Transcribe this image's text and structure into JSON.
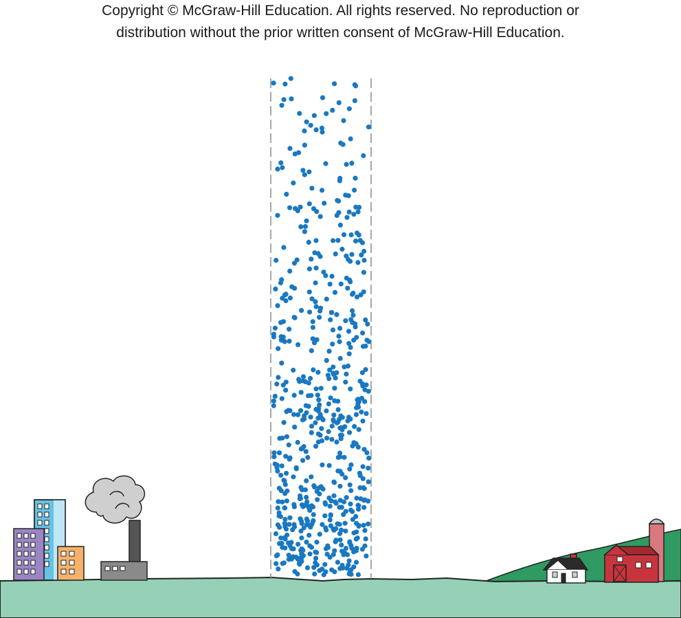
{
  "copyright": {
    "line1": "Copyright © McGraw-Hill Education.  All rights reserved. No reproduction or",
    "line2": "distribution without the prior written consent of McGraw-Hill Education."
  },
  "colors": {
    "ground": "#96d1b7",
    "hill": "#2f9a62",
    "particle": "#1a78c2",
    "column_edge": "#8a8a8a",
    "smoke": "#cfcfcf",
    "barn": "#c8343d",
    "silo": "#d9787f",
    "building_purple": "#9a86c4",
    "building_blue": "#67c2e4",
    "building_orange": "#f6b26b",
    "factory": "#8a8a8a",
    "house": "#ffffff",
    "roof": "#2b2b2b"
  },
  "icons": [
    "city-buildings-icon",
    "factory-icon",
    "smoke-cloud-icon",
    "house-icon",
    "barn-icon",
    "silo-icon"
  ]
}
